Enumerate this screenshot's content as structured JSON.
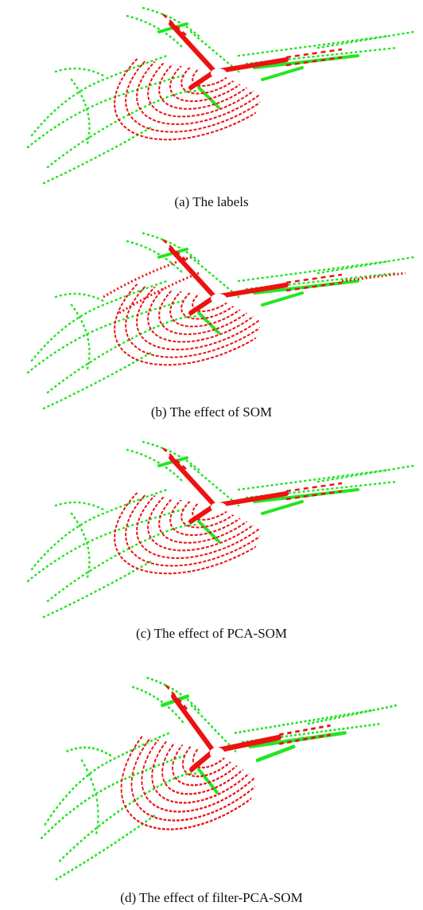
{
  "figure": {
    "panels": [
      {
        "caption": "(a) The labels"
      },
      {
        "caption": "(b) The effect of SOM"
      },
      {
        "caption": "(c) The effect of PCA-SOM"
      },
      {
        "caption": "(d) The effect of filter-PCA-SOM"
      }
    ]
  }
}
